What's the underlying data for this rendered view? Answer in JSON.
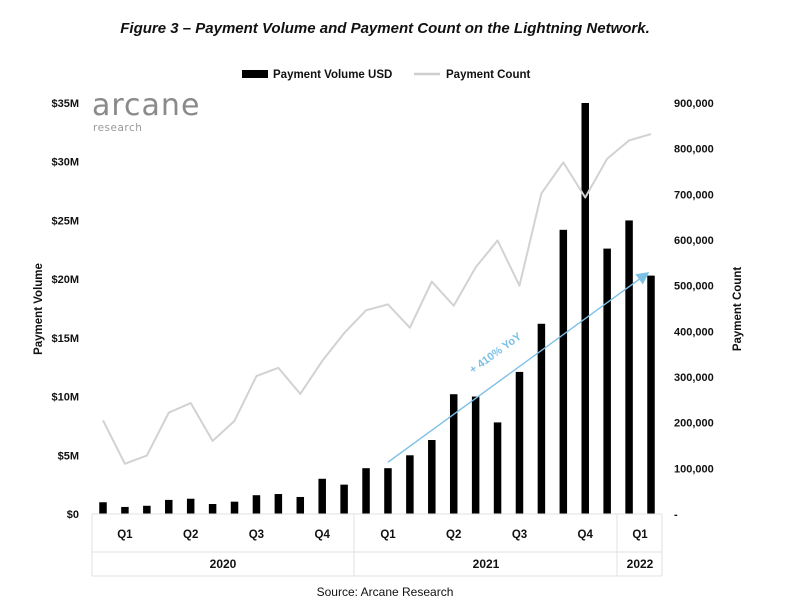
{
  "logo": {
    "name": "arcane",
    "subtitle": "research"
  },
  "source": "Source: Arcane Research",
  "chart_data": {
    "type": "bar+line",
    "title": "Figure 3 – Payment Volume and Payment Count on the Lightning Network.",
    "ylabel_left": "Payment Volume",
    "ylabel_right": "Payment Count",
    "ylim_left": [
      0,
      35000000
    ],
    "ylim_right": [
      0,
      900000
    ],
    "yticks_left": [
      "$0",
      "$5M",
      "$10M",
      "$15M",
      "$20M",
      "$25M",
      "$30M",
      "$35M"
    ],
    "yticks_right": [
      "-",
      "100,000",
      "200,000",
      "300,000",
      "400,000",
      "500,000",
      "600,000",
      "700,000",
      "800,000",
      "900,000"
    ],
    "legend": [
      "Payment Volume USD",
      "Payment Count"
    ],
    "legend_position": "top-center",
    "quarter_labels": [
      "Q1",
      "Q2",
      "Q3",
      "Q4",
      "Q1",
      "Q2",
      "Q3",
      "Q4",
      "Q1"
    ],
    "year_labels": [
      "2020",
      "2021",
      "2022"
    ],
    "series": [
      {
        "name": "Payment Volume USD",
        "type": "bar",
        "color": "#000000",
        "values": [
          1000000,
          600000,
          700000,
          1200000,
          1300000,
          850000,
          1050000,
          1600000,
          1700000,
          1450000,
          3000000,
          2500000,
          3900000,
          3900000,
          5000000,
          6300000,
          10200000,
          10000000,
          7800000,
          12100000,
          16200000,
          24200000,
          35000000,
          22600000,
          25000000,
          20300000
        ]
      },
      {
        "name": "Payment Count",
        "type": "line",
        "color": "#cfcfcf",
        "values": [
          205000,
          110000,
          128000,
          222000,
          243000,
          160000,
          204000,
          302000,
          320000,
          263000,
          335000,
          396000,
          446000,
          459000,
          408000,
          509000,
          456000,
          540000,
          599000,
          500000,
          702000,
          770000,
          693000,
          778000,
          818000,
          832000
        ]
      }
    ],
    "annotation": {
      "text": "+ 410% YoY",
      "color": "#7cc0e6",
      "from_index": 13,
      "to_index": 25
    }
  }
}
